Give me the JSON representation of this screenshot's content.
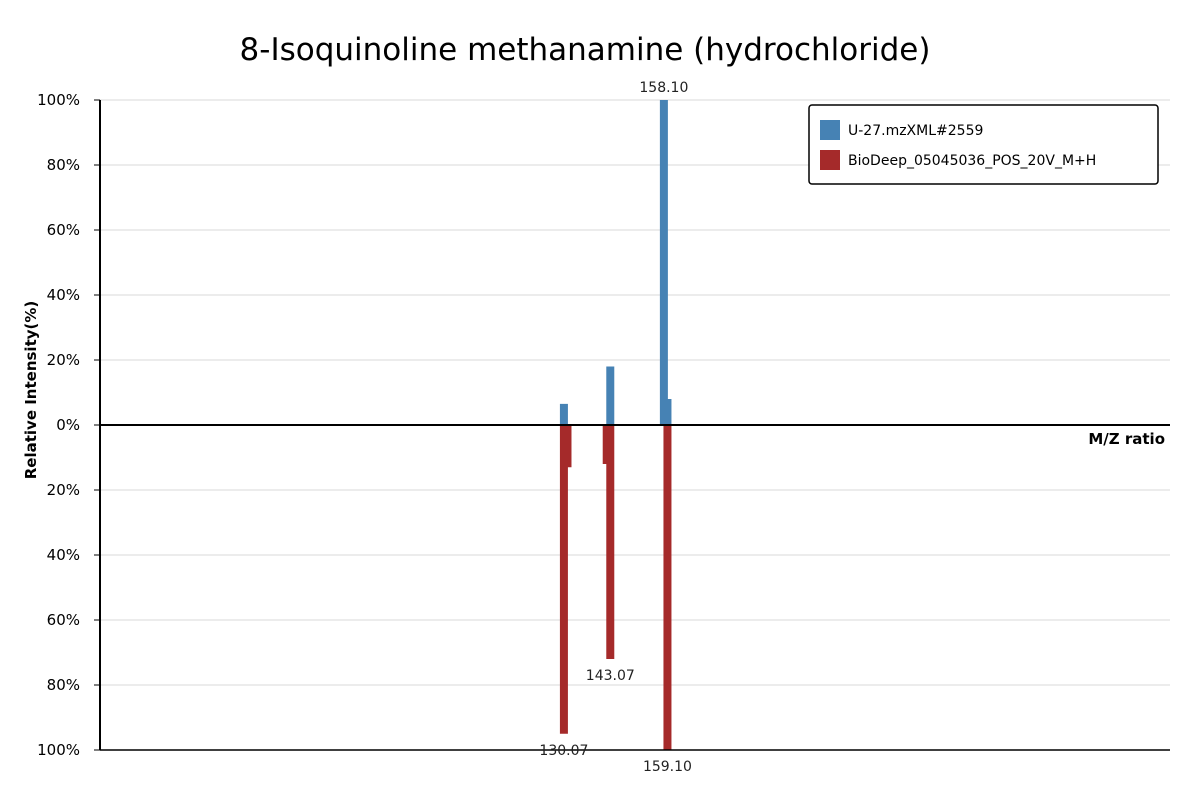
{
  "chart_data": {
    "type": "bar",
    "title": "8-Isoquinoline methanamine (hydrochloride)",
    "xlabel": "M/Z ratio",
    "ylabel": "Relative Intensity(%)",
    "ylim": [
      -100,
      100
    ],
    "y_ticks": [
      "100%",
      "80%",
      "60%",
      "40%",
      "20%",
      "0%",
      "20%",
      "40%",
      "60%",
      "80%",
      "100%"
    ],
    "xlim": [
      0,
      300
    ],
    "colors": {
      "top": "#4682b4",
      "bottom": "#a52a2a"
    },
    "legend": {
      "position": "top-right",
      "entries": [
        "U-27.mzXML#2559",
        "BioDeep_05045036_POS_20V_M+H"
      ]
    },
    "series": [
      {
        "name": "U-27.mzXML#2559",
        "direction": "up",
        "peaks": [
          {
            "mz": 130.07,
            "intensity": 6.5
          },
          {
            "mz": 143.07,
            "intensity": 18
          },
          {
            "mz": 158.1,
            "intensity": 100,
            "label": "158.10"
          },
          {
            "mz": 159.1,
            "intensity": 8
          }
        ]
      },
      {
        "name": "BioDeep_05045036_POS_20V_M+H",
        "direction": "down",
        "peaks": [
          {
            "mz": 130.07,
            "intensity": 95,
            "label": "130.07"
          },
          {
            "mz": 131.07,
            "intensity": 13
          },
          {
            "mz": 142.07,
            "intensity": 12
          },
          {
            "mz": 143.07,
            "intensity": 72,
            "label": "143.07"
          },
          {
            "mz": 159.1,
            "intensity": 100,
            "label": "159.10"
          }
        ]
      }
    ]
  }
}
